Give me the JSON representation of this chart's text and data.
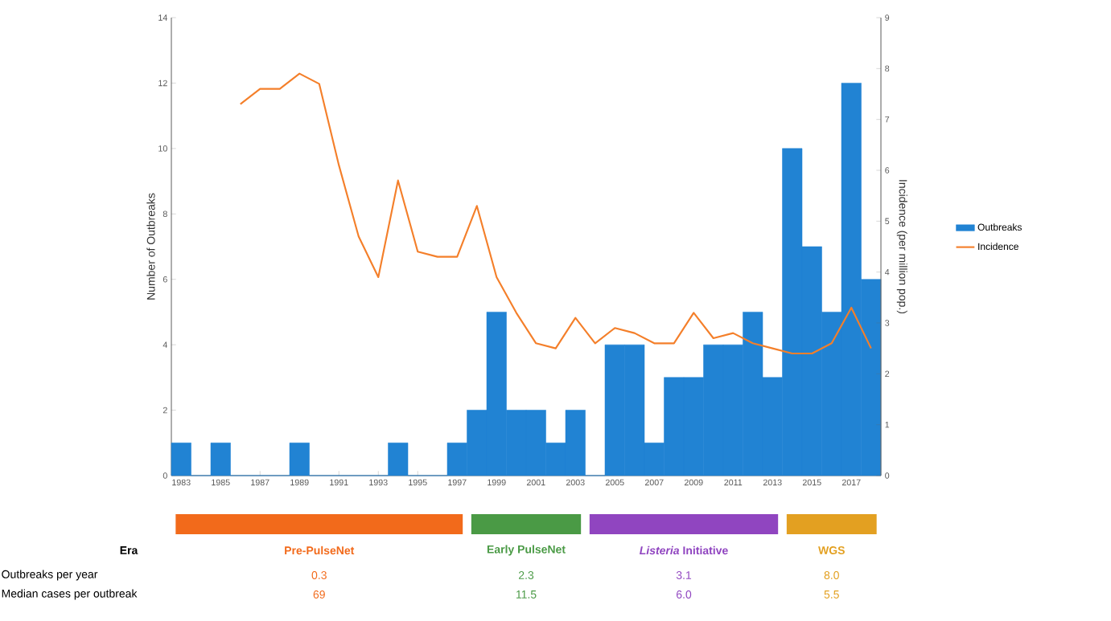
{
  "chart_data": {
    "type": "bar",
    "ylabel": "Number of Outbreaks",
    "y2label": "Incidence (per million pop.)",
    "x": [
      1983,
      1984,
      1985,
      1986,
      1987,
      1988,
      1989,
      1990,
      1991,
      1992,
      1993,
      1994,
      1995,
      1996,
      1997,
      1998,
      1999,
      2000,
      2001,
      2002,
      2003,
      2004,
      2005,
      2006,
      2007,
      2008,
      2009,
      2010,
      2011,
      2012,
      2013,
      2014,
      2015,
      2016,
      2017,
      2018
    ],
    "series": [
      {
        "name": "Outbreaks",
        "color": "#2183d3",
        "values": [
          1,
          0,
          1,
          0,
          0,
          0,
          1,
          0,
          0,
          0,
          0,
          1,
          0,
          0,
          1,
          2,
          5,
          2,
          2,
          1,
          2,
          0,
          4,
          4,
          1,
          3,
          3,
          4,
          4,
          5,
          3,
          10,
          7,
          5,
          12,
          6
        ]
      },
      {
        "name": "Incidence",
        "type": "line",
        "axis": "y2",
        "color": "#f47f2a",
        "values": [
          null,
          null,
          null,
          7.3,
          7.6,
          7.6,
          7.9,
          7.7,
          6.1,
          4.7,
          3.9,
          5.8,
          4.4,
          4.3,
          4.3,
          5.3,
          3.9,
          3.2,
          2.6,
          2.5,
          3.1,
          2.6,
          2.9,
          2.8,
          2.6,
          2.6,
          3.2,
          2.7,
          2.8,
          2.6,
          2.5,
          2.4,
          2.4,
          2.6,
          3.3,
          2.5
        ]
      }
    ],
    "xlim": [
      1982.5,
      2018.5
    ],
    "xticks": [
      1983,
      1985,
      1987,
      1989,
      1991,
      1993,
      1995,
      1997,
      1999,
      2001,
      2003,
      2005,
      2007,
      2009,
      2011,
      2013,
      2015,
      2017
    ],
    "ylim": [
      0,
      14
    ],
    "yticks": [
      0,
      2,
      4,
      6,
      8,
      10,
      12,
      14
    ],
    "y2lim": [
      0,
      9
    ],
    "y2ticks": [
      0,
      1,
      2,
      3,
      4,
      5,
      6,
      7,
      8,
      9
    ],
    "legend": "right",
    "marker": "none",
    "line_style": "solid",
    "annotations": [
      "Era",
      "Pre-PulseNet",
      "Early PulseNet",
      "*Listeria* Initiative",
      "WGS",
      "Outbreaks per year",
      "0.3",
      "2.3",
      "3.1",
      "8.0",
      "Median cases per outbreak",
      "69",
      "11.5",
      "6.0",
      "5.5"
    ]
  }
}
